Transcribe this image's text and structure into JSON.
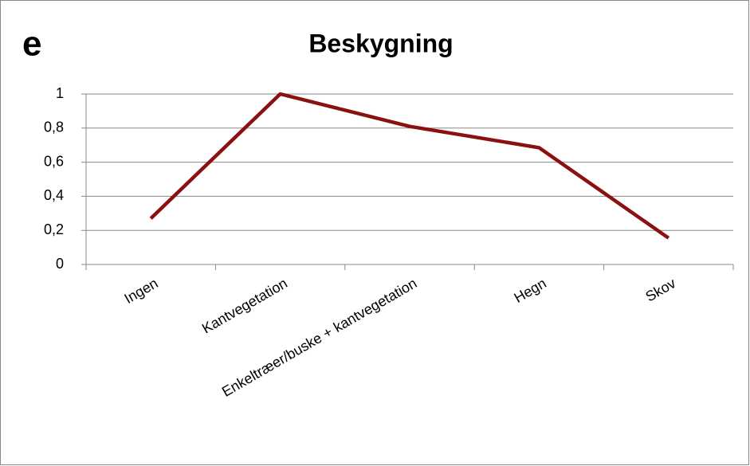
{
  "chart_data": {
    "type": "line",
    "panel_label": "e",
    "title": "Beskygning",
    "categories": [
      "Ingen",
      "Kantvegetation",
      "Enkeltræer/buske + kantvegetation",
      "Hegn",
      "Skov"
    ],
    "values": [
      0.27,
      1.0,
      0.81,
      0.685,
      0.155
    ],
    "color": "#8b1010",
    "ylim": [
      0,
      1
    ],
    "yticks": [
      0,
      {
        "value": 0.2,
        "label": "0,2"
      },
      {
        "value": 0.4,
        "label": "0,4"
      },
      {
        "value": 0.6,
        "label": "0,6"
      },
      {
        "value": 0.8,
        "label": "0,8"
      },
      1
    ],
    "grid": true
  }
}
